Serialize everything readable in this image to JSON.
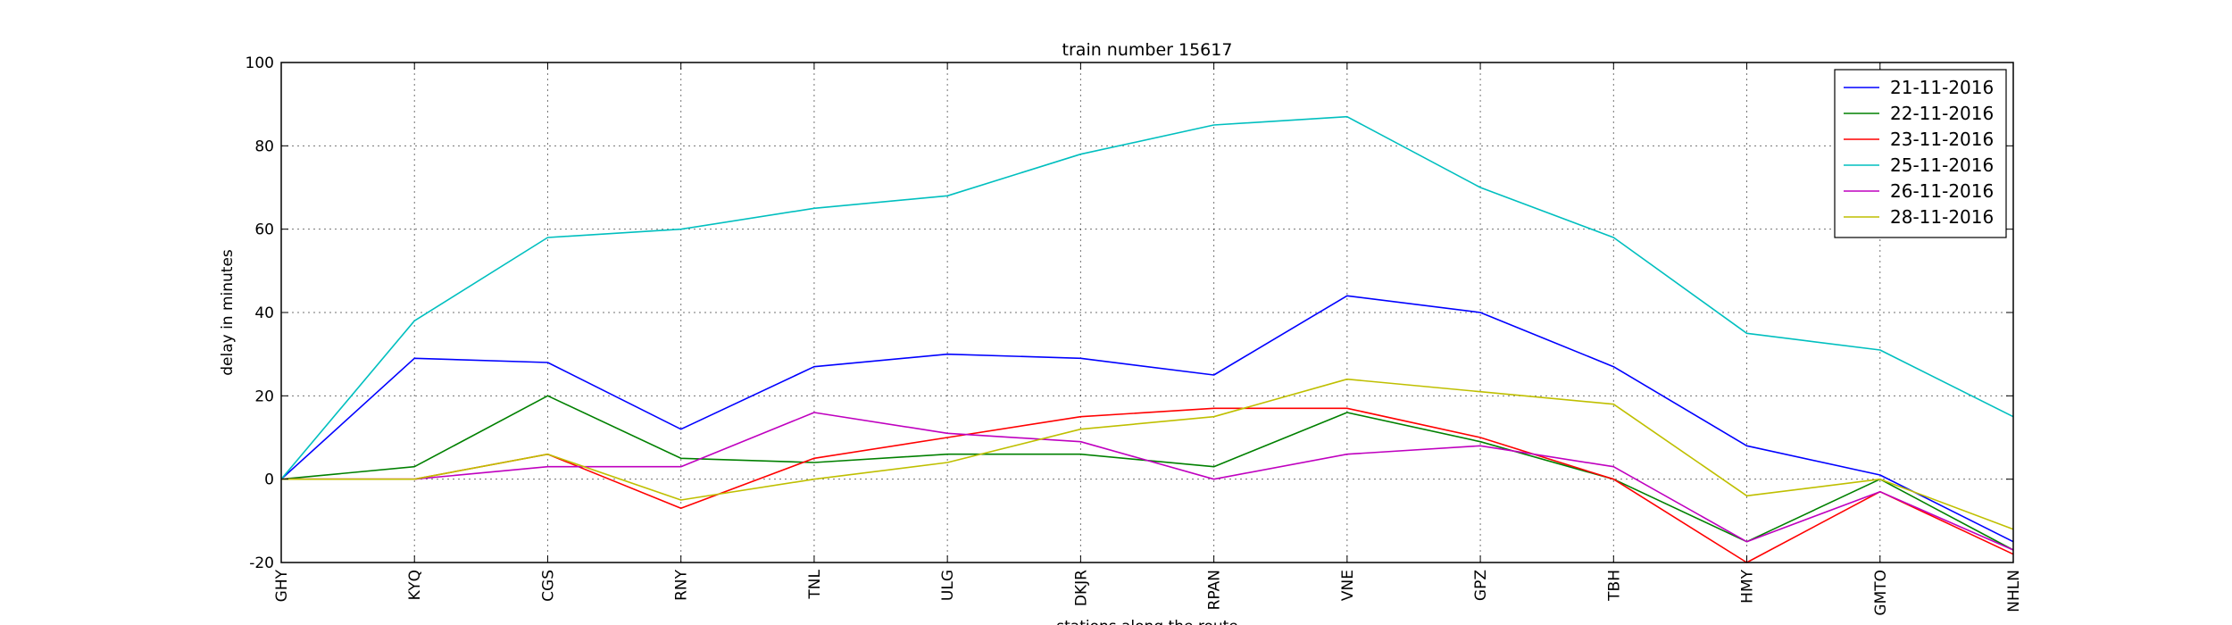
{
  "chart_data": {
    "type": "line",
    "title": "train number 15617",
    "xlabel": "stations along the route",
    "ylabel": "delay in minutes",
    "ylim": [
      -20,
      100
    ],
    "yticks": [
      -20,
      0,
      20,
      40,
      60,
      80,
      100
    ],
    "grid": true,
    "legend_position": "top-right",
    "categories": [
      "GHY",
      "KYQ",
      "CGS",
      "RNY",
      "TNL",
      "ULG",
      "DKJR",
      "RPAN",
      "VNE",
      "GPZ",
      "TBH",
      "HMY",
      "GMTO",
      "NHLN"
    ],
    "series": [
      {
        "name": "21-11-2016",
        "color": "#0000ff",
        "values": [
          0,
          29,
          28,
          12,
          27,
          30,
          29,
          25,
          44,
          40,
          27,
          8,
          1,
          -15
        ]
      },
      {
        "name": "22-11-2016",
        "color": "#008000",
        "values": [
          0,
          3,
          20,
          5,
          4,
          6,
          6,
          3,
          16,
          9,
          0,
          -15,
          0,
          -17
        ]
      },
      {
        "name": "23-11-2016",
        "color": "#ff0000",
        "values": [
          0,
          0,
          6,
          -7,
          5,
          10,
          15,
          17,
          17,
          10,
          0,
          -20,
          -3,
          -18
        ]
      },
      {
        "name": "25-11-2016",
        "color": "#00bfbf",
        "values": [
          0,
          38,
          58,
          60,
          65,
          68,
          78,
          85,
          87,
          70,
          58,
          35,
          31,
          15
        ]
      },
      {
        "name": "26-11-2016",
        "color": "#bf00bf",
        "values": [
          0,
          0,
          3,
          3,
          16,
          11,
          9,
          0,
          6,
          8,
          3,
          -15,
          -3,
          -17
        ]
      },
      {
        "name": "28-11-2016",
        "color": "#bfbf00",
        "values": [
          0,
          0,
          6,
          -5,
          0,
          4,
          12,
          15,
          24,
          21,
          18,
          -4,
          0,
          -12
        ]
      }
    ]
  }
}
